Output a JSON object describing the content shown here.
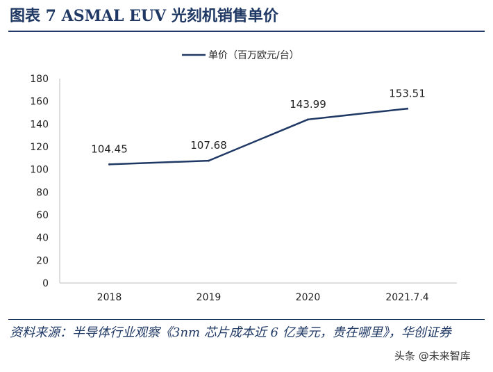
{
  "figure": {
    "title": "图表 7   ASMAL EUV 光刻机销售单价",
    "source": "资料来源：半导体行业观察《3nm 芯片成本近 6 亿美元，贵在哪里》，华创证券",
    "watermark": "头条 @未来智库"
  },
  "chart_data": {
    "type": "line",
    "categories": [
      "2018",
      "2019",
      "2020",
      "2021.7.4"
    ],
    "series": [
      {
        "name": "单价（百万欧元/台）",
        "values": [
          104.45,
          107.68,
          143.99,
          153.51
        ],
        "color": "#1F3864"
      }
    ],
    "data_labels": [
      "104.45",
      "107.68",
      "143.99",
      "153.51"
    ],
    "ylim": [
      0,
      180
    ],
    "yticks": [
      0,
      20,
      40,
      60,
      80,
      100,
      120,
      140,
      160,
      180
    ],
    "grid": false,
    "legend": "top-center",
    "xlabel": "",
    "ylabel": ""
  }
}
